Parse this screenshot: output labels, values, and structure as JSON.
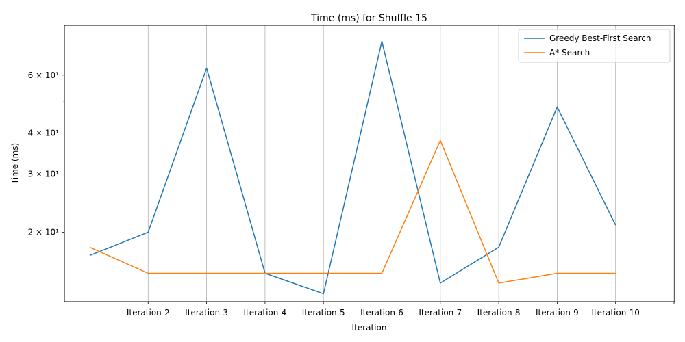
{
  "chart_data": {
    "type": "line",
    "title": "Time (ms) for Shuffle 15",
    "xlabel": "Iteration",
    "ylabel": "Time (ms)",
    "yscale": "log",
    "ylim": [
      12.3,
      85
    ],
    "x_tick_labels": [
      "Iteration-2",
      "Iteration-3",
      "Iteration-4",
      "Iteration-5",
      "Iteration-6",
      "Iteration-7",
      "Iteration-8",
      "Iteration-9",
      "Iteration-10",
      ""
    ],
    "y_tick_labels": [
      {
        "value": 20,
        "label": "2 × 10¹"
      },
      {
        "value": 30,
        "label": "3 × 10¹"
      },
      {
        "value": 40,
        "label": "4 × 10¹"
      },
      {
        "value": 60,
        "label": "6 × 10¹"
      }
    ],
    "grid": "vertical",
    "legend_position": "top-right",
    "series": [
      {
        "name": "Greedy Best-First Search",
        "color": "#1f77b4",
        "values": [
          17,
          20,
          63,
          15,
          13,
          76,
          14,
          18,
          48,
          21
        ]
      },
      {
        "name": "A* Search",
        "color": "#ff7f0e",
        "values": [
          18,
          15,
          15,
          15,
          15,
          15,
          38,
          14,
          15,
          15
        ]
      }
    ]
  }
}
